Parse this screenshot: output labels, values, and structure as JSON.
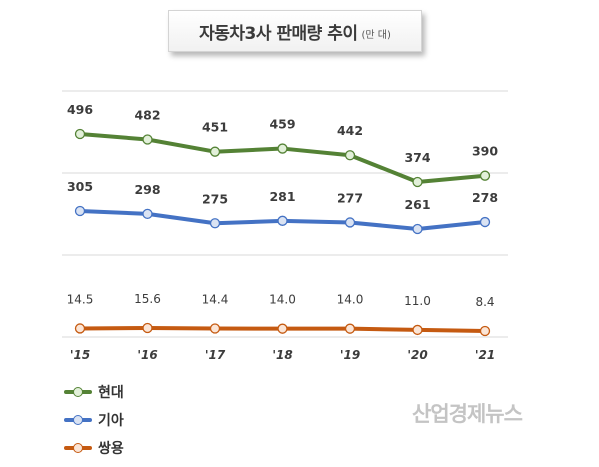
{
  "title": "자동차3사 판매량 추이",
  "unit": "(만 대)",
  "watermark": "산업경제뉴스",
  "chart_data": {
    "type": "line",
    "title": "자동차3사 판매량 추이",
    "unit": "(만 대)",
    "categories": [
      "'15",
      "'16",
      "'17",
      "'18",
      "'19",
      "'20",
      "'21"
    ],
    "series": [
      {
        "name": "현대",
        "color": "#548235",
        "fill": "#e2f0d9",
        "values": [
          496,
          482,
          451,
          459,
          442,
          374,
          390
        ],
        "labels": [
          "496",
          "482",
          "451",
          "459",
          "442",
          "374",
          "390"
        ]
      },
      {
        "name": "기아",
        "color": "#4472c4",
        "fill": "#dae3f3",
        "values": [
          305,
          298,
          275,
          281,
          277,
          261,
          278
        ],
        "labels": [
          "305",
          "298",
          "275",
          "281",
          "277",
          "261",
          "278"
        ]
      },
      {
        "name": "쌍용",
        "color": "#c55a11",
        "fill": "#fbe5d6",
        "values": [
          14.5,
          15.6,
          14.4,
          14.0,
          14.0,
          11.0,
          8.4
        ],
        "labels": [
          "14.5",
          "15.6",
          "14.4",
          "14.0",
          "14.0",
          "11.0",
          "8.4"
        ]
      }
    ],
    "grid": true,
    "legend_position": "bottom-left"
  }
}
